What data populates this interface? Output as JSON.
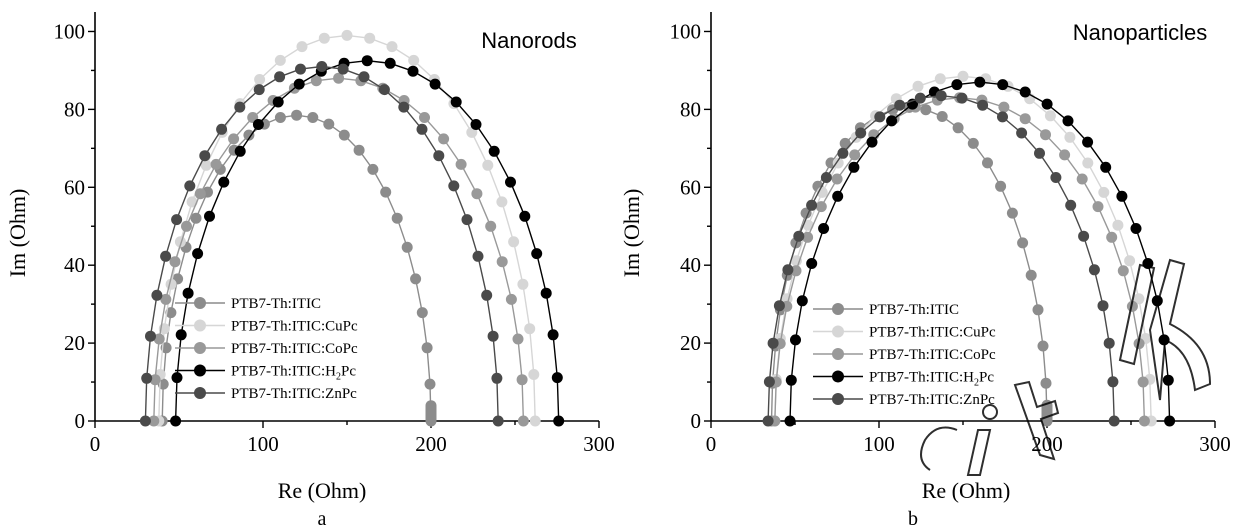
{
  "chart_data": [
    {
      "type": "scatter",
      "panel_letter": "a",
      "title": "Nanorods",
      "xlabel": "Re (Ohm)",
      "ylabel": "Im (Ohm)",
      "xlim": [
        0,
        300
      ],
      "ylim": [
        0,
        105
      ],
      "xticks": [
        0,
        100,
        200,
        300
      ],
      "yticks": [
        0,
        20,
        40,
        60,
        80,
        100
      ],
      "legend_position": "lower-left",
      "series": [
        {
          "name": "PTB7-Th:ITIC",
          "name_main": "PTB7-Th:ITIC",
          "name_sub": "",
          "name_tail": "",
          "color": "#8c8c8c",
          "center": 120,
          "radius": 80,
          "peak": 78.5
        },
        {
          "name": "PTB7-Th:ITIC:CuPc",
          "name_main": "PTB7-Th:ITIC:CuPc",
          "name_sub": "",
          "name_tail": "",
          "color": "#d6d6d6",
          "center": 150,
          "radius": 112,
          "peak": 99
        },
        {
          "name": "PTB7-Th:ITIC:CoPc",
          "name_main": "PTB7-Th:ITIC:CoPc",
          "name_sub": "",
          "name_tail": "",
          "color": "#999999",
          "center": 145,
          "radius": 110,
          "peak": 88
        },
        {
          "name": "PTB7-Th:ITIC:H2Pc",
          "name_main": "PTB7-Th:ITIC:H",
          "name_sub": "2",
          "name_tail": "Pc",
          "color": "#000000",
          "center": 162,
          "radius": 114,
          "peak": 92.5
        },
        {
          "name": "PTB7-Th:ITIC:ZnPc",
          "name_main": "PTB7-Th:ITIC:ZnPc",
          "name_sub": "",
          "name_tail": "",
          "color": "#4a4a4a",
          "center": 135,
          "radius": 105,
          "peak": 91
        }
      ]
    },
    {
      "type": "scatter",
      "panel_letter": "b",
      "title": "Nanoparticles",
      "xlabel": "Re (Ohm)",
      "ylabel": "Im (Ohm)",
      "xlim": [
        0,
        300
      ],
      "ylim": [
        0,
        105
      ],
      "xticks": [
        0,
        100,
        200,
        300
      ],
      "yticks": [
        0,
        20,
        40,
        60,
        80,
        100
      ],
      "legend_position": "lower-left",
      "series": [
        {
          "name": "PTB7-Th:ITIC",
          "name_main": "PTB7-Th:ITIC",
          "name_sub": "",
          "name_tail": "",
          "color": "#8c8c8c",
          "center": 118,
          "radius": 82,
          "peak": 80.5
        },
        {
          "name": "PTB7-Th:ITIC:CuPc",
          "name_main": "PTB7-Th:ITIC:CuPc",
          "name_sub": "",
          "name_tail": "",
          "color": "#d6d6d6",
          "center": 150,
          "radius": 112,
          "peak": 88.5
        },
        {
          "name": "PTB7-Th:ITIC:CoPc",
          "name_main": "PTB7-Th:ITIC:CoPc",
          "name_sub": "",
          "name_tail": "",
          "color": "#999999",
          "center": 148,
          "radius": 110,
          "peak": 83
        },
        {
          "name": "PTB7-Th:ITIC:H2Pc",
          "name_main": "PTB7-Th:ITIC:H",
          "name_sub": "2",
          "name_tail": "Pc",
          "color": "#000000",
          "center": 160,
          "radius": 113,
          "peak": 87
        },
        {
          "name": "PTB7-Th:ITIC:ZnPc",
          "name_main": "PTB7-Th:ITIC:ZnPc",
          "name_sub": "",
          "name_tail": "",
          "color": "#4a4a4a",
          "center": 137,
          "radius": 103,
          "peak": 83.5
        }
      ]
    }
  ],
  "watermark_text": "city"
}
